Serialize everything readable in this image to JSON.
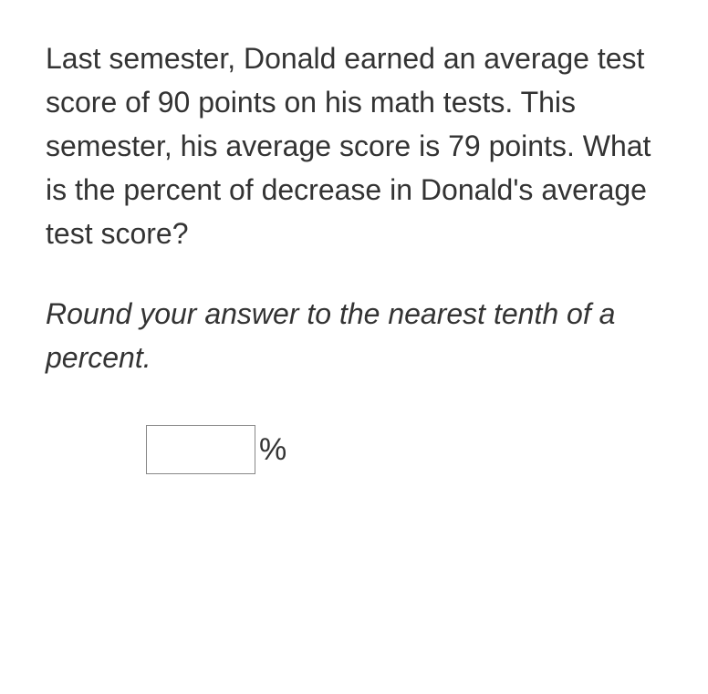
{
  "question": {
    "text": "Last semester, Donald earned an average test score of 90 points on his math tests. This semester, his average score is 79 points. What is the percent of decrease in Donald's average test score?",
    "instruction": "Round your answer to the nearest tenth of a percent.",
    "answer_value": "",
    "unit": "%"
  },
  "styling": {
    "background_color": "#ffffff",
    "text_color": "#333333",
    "font_family": "Verdana, Geneva, sans-serif",
    "question_fontsize": 32,
    "instruction_fontsize": 32,
    "unit_fontsize": 34,
    "input_border_color": "#888888",
    "input_width": 120,
    "input_height": 54
  }
}
